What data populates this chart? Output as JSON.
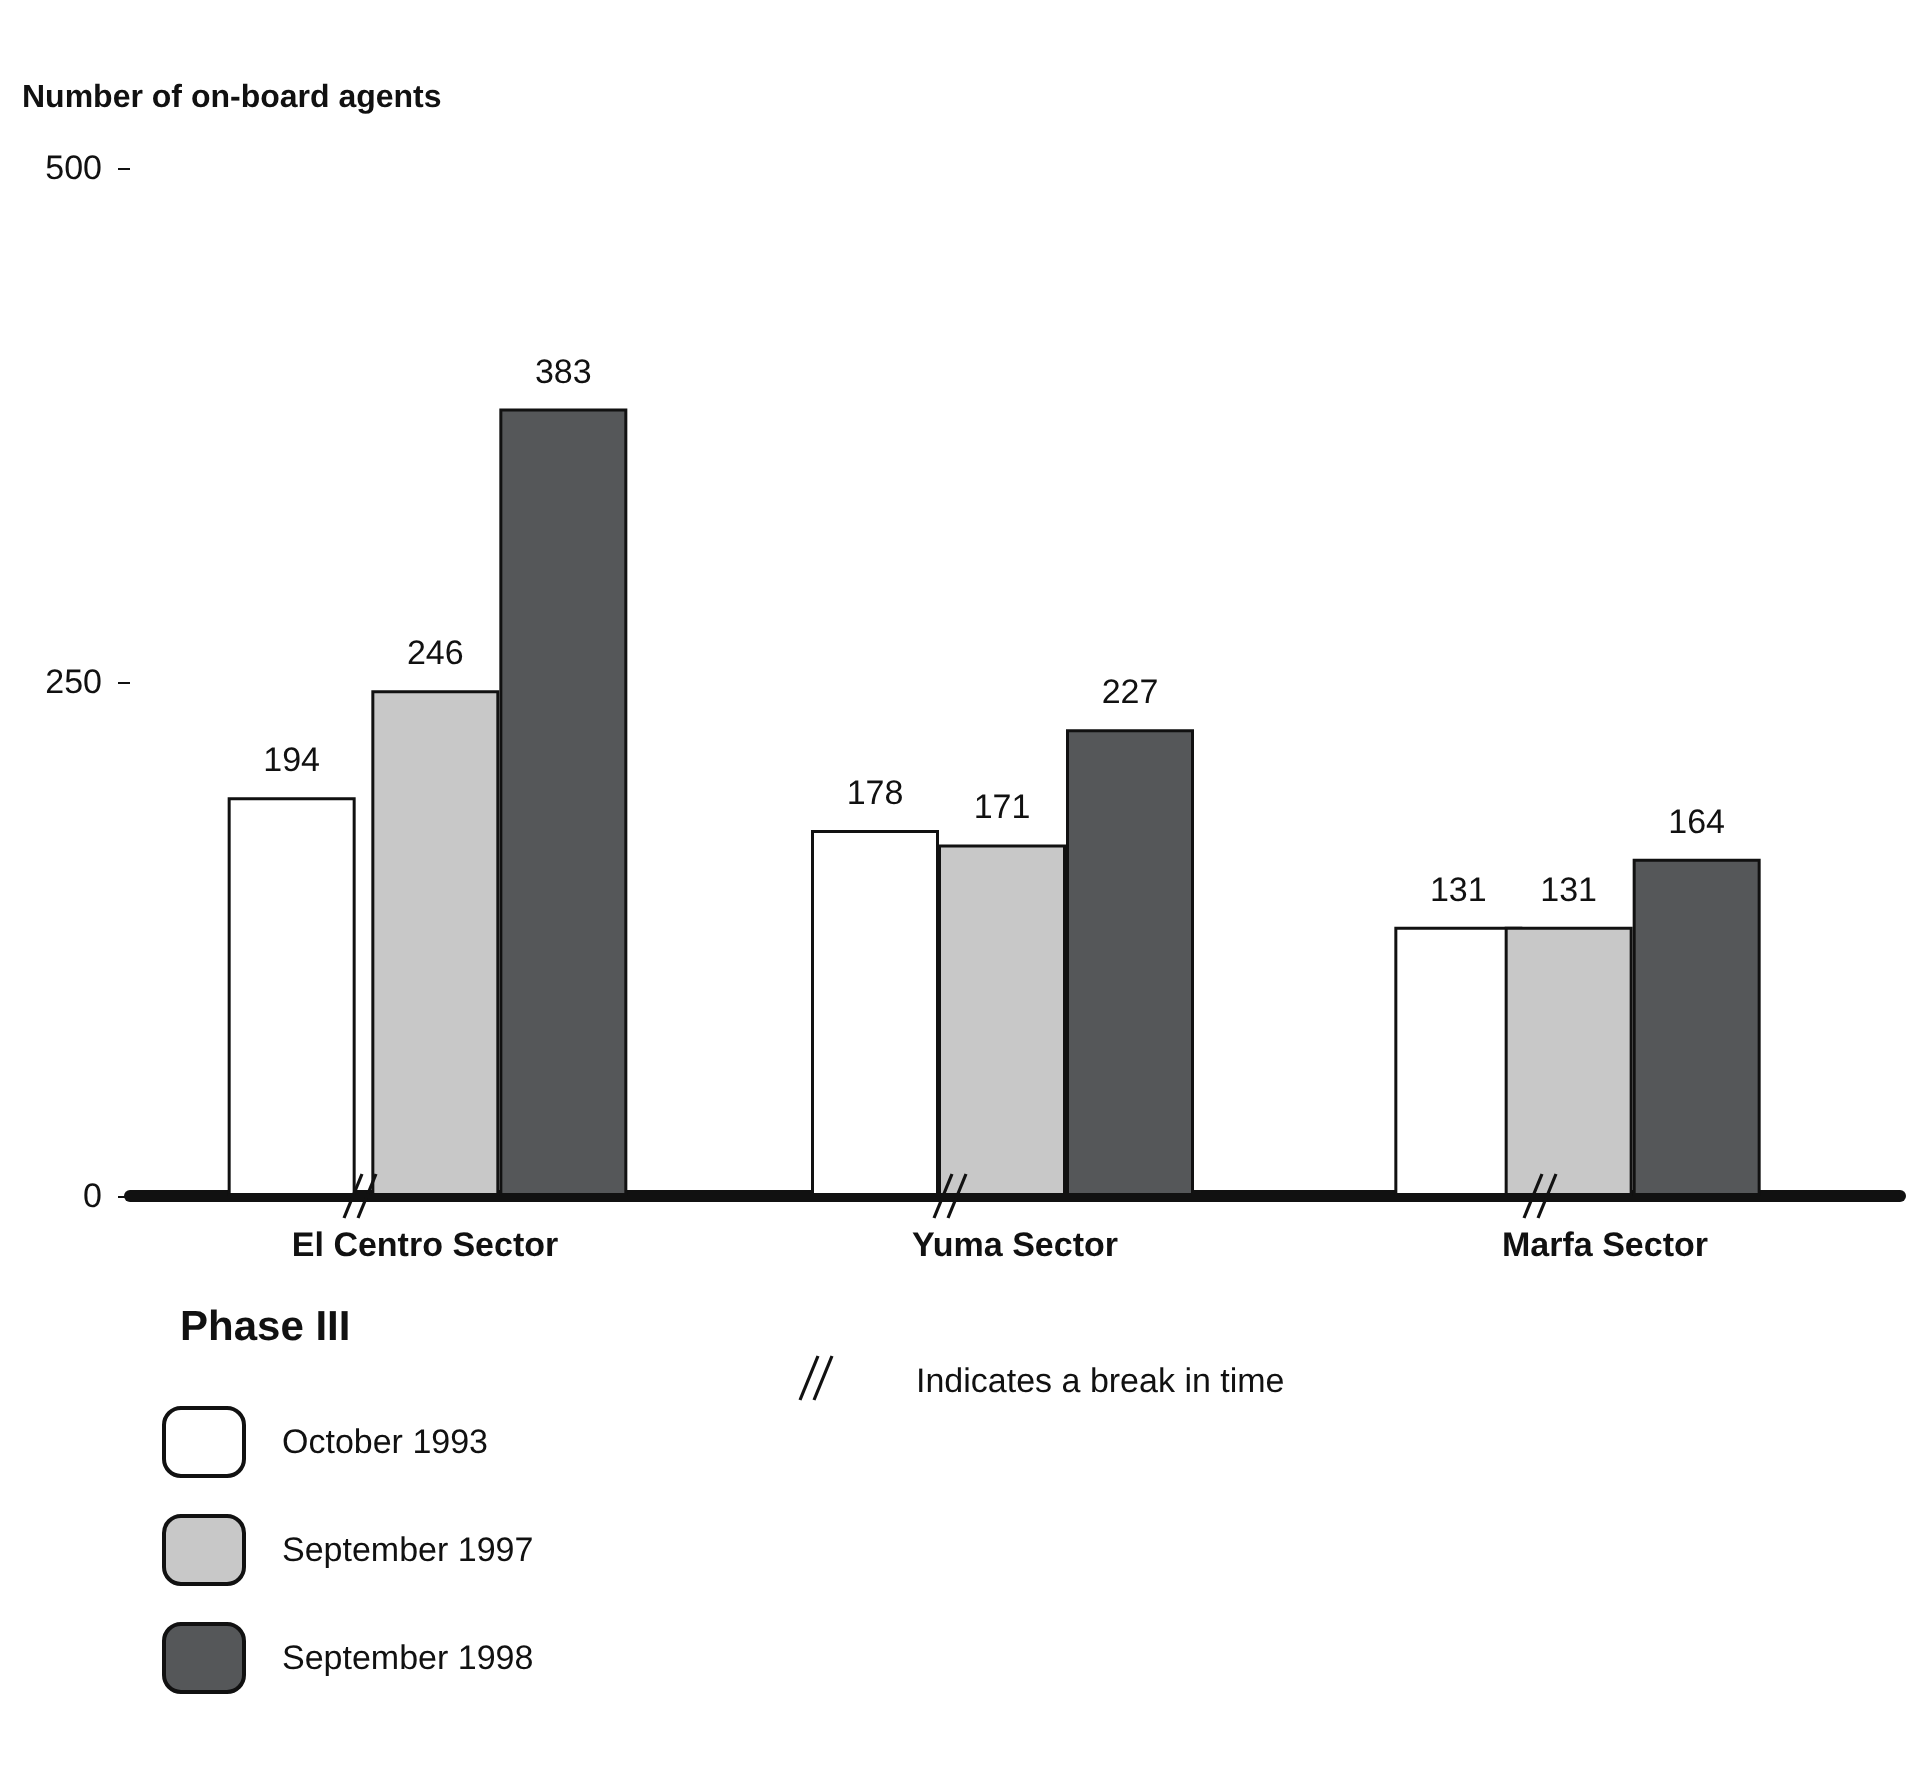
{
  "chart_data": {
    "type": "bar",
    "title": "Number of on-board agents",
    "legend_title": "Phase III",
    "categories": [
      "El Centro Sector",
      "Yuma Sector",
      "Marfa Sector"
    ],
    "series": [
      {
        "name": "October 1993",
        "color": "#ffffff",
        "values": [
          194,
          178,
          131
        ]
      },
      {
        "name": "September 1997",
        "color": "#c8c8c8",
        "values": [
          246,
          171,
          131
        ]
      },
      {
        "name": "September 1998",
        "color": "#555759",
        "values": [
          383,
          227,
          164
        ]
      }
    ],
    "ylim": [
      0,
      500
    ],
    "yticks": [
      0,
      250,
      500
    ],
    "grid": false,
    "legend": "bottom left",
    "data_labels": true,
    "annotations": [
      "Indicates a break in time"
    ]
  }
}
